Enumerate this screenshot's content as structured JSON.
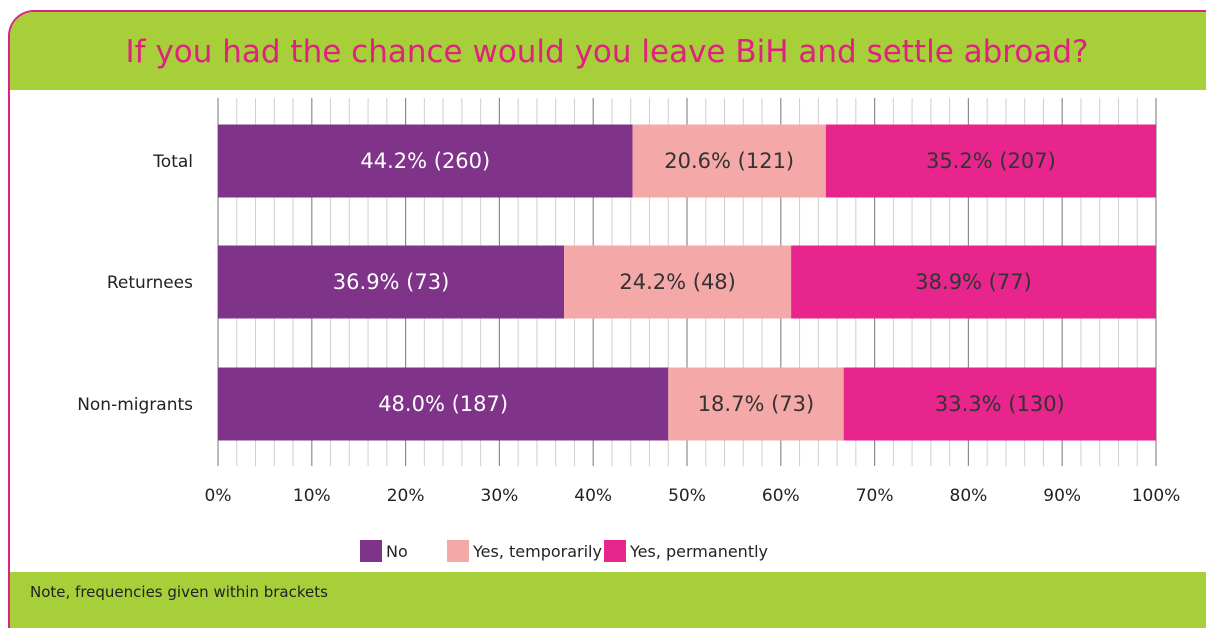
{
  "title": "If you had the chance would you leave BiH and settle abroad?",
  "note": "Note, frequencies given within brackets",
  "colors": {
    "accent_green": "#a6cf3a",
    "accent_pink": "#e0217f",
    "no": "#7f3489",
    "temporarily": "#f4a8a8",
    "permanently": "#e8258c"
  },
  "chart_data": {
    "type": "bar",
    "orientation": "horizontal",
    "stacked": true,
    "categories": [
      "Total",
      "Returnees",
      "Non-migrants"
    ],
    "series": [
      {
        "name": "No",
        "values": [
          44.2,
          36.9,
          48.0
        ],
        "labels": [
          "44.2% (260)",
          "36.9% (73)",
          "48.0% (187)"
        ],
        "color": "#7f3489",
        "label_color": "#ffffff"
      },
      {
        "name": "Yes, temporarily",
        "values": [
          20.6,
          24.2,
          18.7
        ],
        "labels": [
          "20.6% (121)",
          "24.2% (48)",
          "18.7% (73)"
        ],
        "color": "#f4a8a8",
        "label_color": "#333333"
      },
      {
        "name": "Yes, permanently",
        "values": [
          35.2,
          38.9,
          33.3
        ],
        "labels": [
          "35.2% (207)",
          "38.9% (77)",
          "33.3% (130)"
        ],
        "color": "#e8258c",
        "label_color": "#333333"
      }
    ],
    "xlim": [
      0,
      100
    ],
    "xticks": [
      "0%",
      "10%",
      "20%",
      "30%",
      "40%",
      "50%",
      "60%",
      "70%",
      "80%",
      "90%",
      "100%"
    ],
    "grid": true,
    "legend_position": "bottom"
  }
}
